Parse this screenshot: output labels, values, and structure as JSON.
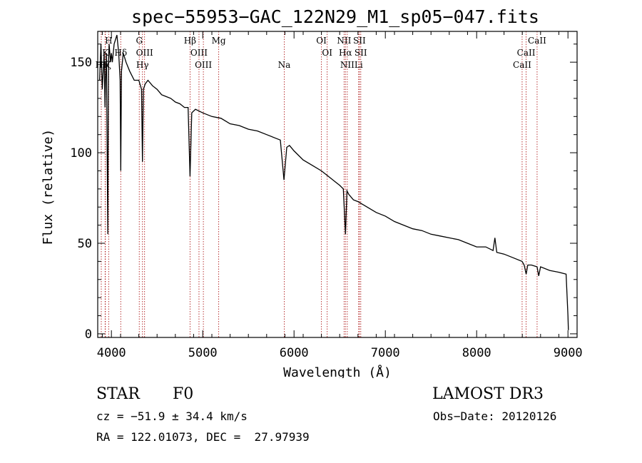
{
  "chart_data": {
    "type": "line",
    "title": "spec−55953−GAC_122N29_M1_sp05−047.fits",
    "xlabel": "Wavelength (Å)",
    "ylabel": "Flux (relative)",
    "xlim": [
      3850,
      9100
    ],
    "ylim": [
      -2,
      167
    ],
    "xticks": [
      4000,
      5000,
      6000,
      7000,
      8000,
      9000
    ],
    "yticks": [
      0,
      50,
      100,
      150
    ],
    "series": [
      {
        "name": "spectrum",
        "x": [
          3870,
          3885,
          3900,
          3910,
          3920,
          3930,
          3935,
          3945,
          3960,
          3968,
          3975,
          3990,
          4000,
          4010,
          4030,
          4060,
          4080,
          4095,
          4102,
          4110,
          4130,
          4160,
          4200,
          4250,
          4300,
          4330,
          4340,
          4350,
          4370,
          4400,
          4450,
          4500,
          4550,
          4600,
          4650,
          4700,
          4750,
          4800,
          4840,
          4861,
          4880,
          4920,
          5000,
          5100,
          5200,
          5300,
          5400,
          5500,
          5600,
          5700,
          5800,
          5850,
          5890,
          5920,
          5950,
          6000,
          6100,
          6200,
          6300,
          6400,
          6450,
          6500,
          6540,
          6563,
          6580,
          6600,
          6650,
          6700,
          6800,
          6900,
          7000,
          7100,
          7200,
          7300,
          7400,
          7500,
          7600,
          7700,
          7800,
          7900,
          8000,
          8100,
          8180,
          8200,
          8220,
          8300,
          8400,
          8498,
          8520,
          8542,
          8560,
          8600,
          8662,
          8680,
          8700,
          8800,
          8900,
          8980,
          9000,
          9005
        ],
        "values": [
          140,
          160,
          135,
          145,
          155,
          125,
          140,
          155,
          55,
          150,
          160,
          150,
          155,
          150,
          160,
          165,
          155,
          140,
          90,
          145,
          155,
          150,
          145,
          140,
          140,
          135,
          95,
          135,
          138,
          140,
          137,
          135,
          132,
          131,
          130,
          128,
          127,
          125,
          125,
          87,
          122,
          124,
          122,
          120,
          119,
          116,
          115,
          113,
          112,
          110,
          108,
          107,
          85,
          103,
          104,
          101,
          96,
          93,
          90,
          86,
          84,
          82,
          80,
          55,
          79,
          77,
          74,
          73,
          70,
          67,
          65,
          62,
          60,
          58,
          57,
          55,
          54,
          53,
          52,
          50,
          48,
          48,
          46,
          53,
          45,
          44,
          42,
          40,
          38,
          33,
          38,
          38,
          37,
          32,
          37,
          35,
          34,
          33,
          10,
          2
        ]
      }
    ],
    "lines": [
      {
        "name": "H",
        "wavelength": 3970,
        "row": 0
      },
      {
        "name": "K",
        "wavelength": 3934,
        "row": 1
      },
      {
        "name": "Hε",
        "wavelength": 3889,
        "row": 2
      },
      {
        "name": "Hζ",
        "wavelength": 3931,
        "row": 2
      },
      {
        "name": "Hδ",
        "wavelength": 4102,
        "row": 1
      },
      {
        "name": "G",
        "wavelength": 4305,
        "row": 0
      },
      {
        "name": "OIII",
        "wavelength": 4363,
        "row": 1
      },
      {
        "name": "Hγ",
        "wavelength": 4340,
        "row": 2
      },
      {
        "name": "Hβ",
        "wavelength": 4861,
        "row": 0
      },
      {
        "name": "OIII",
        "wavelength": 4959,
        "row": 1
      },
      {
        "name": "OIII",
        "wavelength": 5007,
        "row": 2
      },
      {
        "name": "Mg",
        "wavelength": 5175,
        "row": 0
      },
      {
        "name": "Na",
        "wavelength": 5893,
        "row": 2
      },
      {
        "name": "OI",
        "wavelength": 6300,
        "row": 0
      },
      {
        "name": "OI",
        "wavelength": 6363,
        "row": 1
      },
      {
        "name": "NII",
        "wavelength": 6548,
        "row": 0
      },
      {
        "name": "Hα",
        "wavelength": 6563,
        "row": 1
      },
      {
        "name": "NII",
        "wavelength": 6583,
        "row": 2
      },
      {
        "name": "SII",
        "wavelength": 6716,
        "row": 0
      },
      {
        "name": "SII",
        "wavelength": 6731,
        "row": 1
      },
      {
        "name": "Li",
        "wavelength": 6708,
        "row": 2
      },
      {
        "name": "CaII",
        "wavelength": 8662,
        "row": 0
      },
      {
        "name": "CaII",
        "wavelength": 8542,
        "row": 1
      },
      {
        "name": "CaII",
        "wavelength": 8498,
        "row": 2
      }
    ]
  },
  "info": {
    "class_label": "STAR",
    "subclass": "F0",
    "survey": "LAMOST DR3",
    "cz": "cz = −51.9 ± 34.4 km/s",
    "obs_date": "Obs−Date: 20120126",
    "coords": "RA = 122.01073, DEC =  27.97939"
  },
  "colors": {
    "spectrum": "#000000",
    "marker_lines": "#b22222",
    "axes": "#000000"
  }
}
